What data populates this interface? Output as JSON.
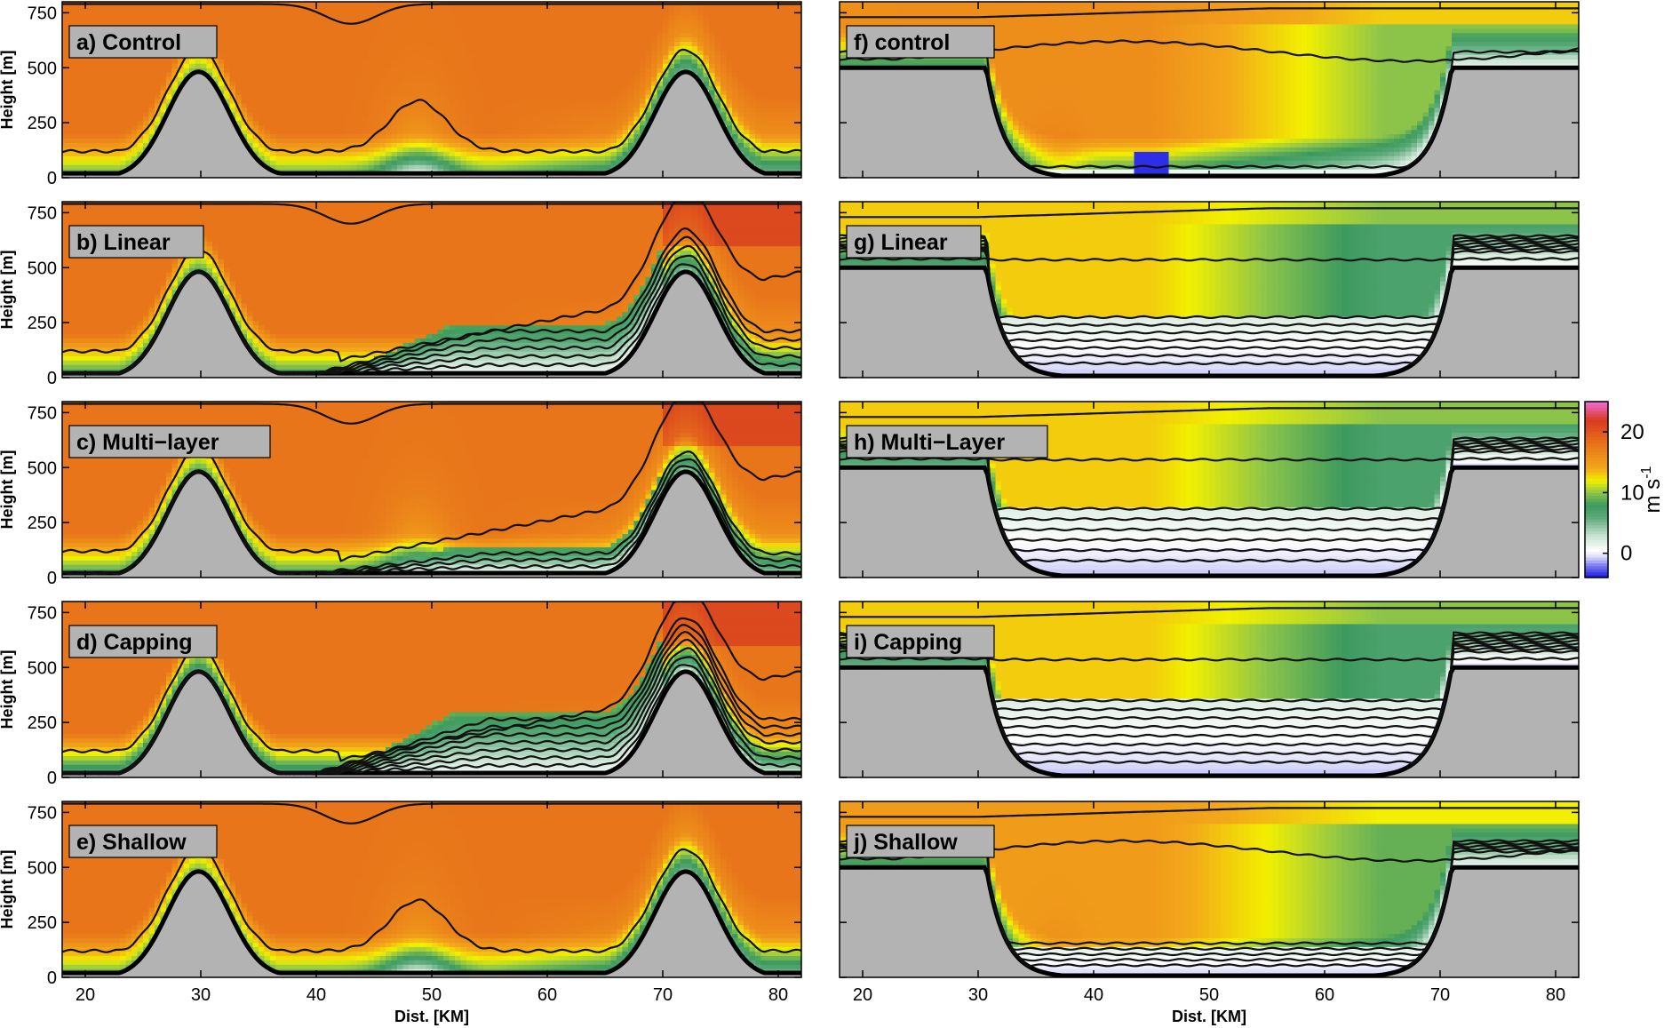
{
  "chart_data": {
    "type": "heatmap",
    "description_units": "wind speed colour scale",
    "colorbar": {
      "label": "m s",
      "label_superscript": "-1",
      "ticks": [
        "0",
        "10",
        "20"
      ],
      "tick_values": [
        0,
        10,
        20
      ],
      "range": [
        -4,
        25
      ],
      "stops": [
        {
          "v": -4,
          "color": "#1414e6"
        },
        {
          "v": -2,
          "color": "#7b7bf0"
        },
        {
          "v": -0.5,
          "color": "#dcdcfa"
        },
        {
          "v": 0.5,
          "color": "#ffffff"
        },
        {
          "v": 3,
          "color": "#c6e1cf"
        },
        {
          "v": 6,
          "color": "#5aa978"
        },
        {
          "v": 8,
          "color": "#3d9a5f"
        },
        {
          "v": 10,
          "color": "#8cc44a"
        },
        {
          "v": 12,
          "color": "#f2f000"
        },
        {
          "v": 14,
          "color": "#f3a81a"
        },
        {
          "v": 18,
          "color": "#e8751a"
        },
        {
          "v": 22,
          "color": "#d83a20"
        },
        {
          "v": 25,
          "color": "#f06cd6"
        }
      ]
    },
    "y_axis": {
      "label": "Height [m]",
      "ticks": [
        "0",
        "250",
        "500",
        "750"
      ],
      "tick_values": [
        0,
        250,
        500,
        750
      ],
      "ylim": [
        0,
        800
      ]
    },
    "x_axis": {
      "label": "Dist. [KM]",
      "ticks": [
        "20",
        "30",
        "40",
        "50",
        "60",
        "70",
        "80"
      ],
      "tick_values": [
        20,
        30,
        40,
        50,
        60,
        70,
        80
      ],
      "xlim": [
        18,
        82
      ]
    },
    "terrain_color": "#b3b3b3",
    "panels": [
      {
        "id": "a",
        "label": "a) Control",
        "column": 0,
        "row": 0,
        "terrain": "ridges",
        "upper_speed": 18,
        "lower_speed": 9,
        "has_valley_bump": true,
        "pool_depth": 0,
        "contour_top_dip": true,
        "contour_count": 1
      },
      {
        "id": "b",
        "label": "b) Linear",
        "column": 0,
        "row": 1,
        "terrain": "ridges",
        "upper_speed": 18,
        "lower_speed": 8,
        "has_valley_bump": false,
        "pool_depth": 230,
        "contour_top_dip": true,
        "contour_count": 6
      },
      {
        "id": "c",
        "label": "c) Multi−layer",
        "column": 0,
        "row": 2,
        "terrain": "ridges",
        "upper_speed": 18,
        "lower_speed": 8,
        "has_valley_bump": true,
        "pool_depth": 120,
        "contour_top_dip": true,
        "contour_count": 4
      },
      {
        "id": "d",
        "label": "d) Capping",
        "column": 0,
        "row": 3,
        "terrain": "ridges",
        "upper_speed": 18,
        "lower_speed": 6,
        "has_valley_bump": false,
        "pool_depth": 280,
        "contour_top_dip": false,
        "contour_count": 8
      },
      {
        "id": "e",
        "label": "e) Shallow",
        "column": 0,
        "row": 4,
        "terrain": "ridges",
        "upper_speed": 18,
        "lower_speed": 9,
        "has_valley_bump": true,
        "pool_depth": 0,
        "contour_top_dip": true,
        "contour_count": 1
      },
      {
        "id": "f",
        "label": "f) control",
        "column": 1,
        "row": 0,
        "terrain": "plateau",
        "upper_speed": 16,
        "lower_speed": 7,
        "has_valley_bump": true,
        "pool_depth": 40,
        "contour_top_dip": false,
        "contour_count": 2
      },
      {
        "id": "g",
        "label": "g) Linear",
        "column": 1,
        "row": 1,
        "terrain": "plateau",
        "upper_speed": 13,
        "lower_speed": 6,
        "has_valley_bump": false,
        "pool_depth": 280,
        "contour_top_dip": false,
        "contour_count": 8
      },
      {
        "id": "h",
        "label": "h) Multi−Layer",
        "column": 1,
        "row": 2,
        "terrain": "plateau",
        "upper_speed": 13,
        "lower_speed": 5,
        "has_valley_bump": false,
        "pool_depth": 330,
        "contour_top_dip": false,
        "contour_count": 7
      },
      {
        "id": "i",
        "label": "i) Capping",
        "column": 1,
        "row": 3,
        "terrain": "plateau",
        "upper_speed": 13,
        "lower_speed": 5,
        "has_valley_bump": false,
        "pool_depth": 360,
        "contour_top_dip": false,
        "contour_count": 9
      },
      {
        "id": "j",
        "label": "j) Shallow",
        "column": 1,
        "row": 4,
        "terrain": "plateau",
        "upper_speed": 15,
        "lower_speed": 7,
        "has_valley_bump": true,
        "pool_depth": 150,
        "contour_top_dip": false,
        "contour_count": 6
      }
    ]
  }
}
